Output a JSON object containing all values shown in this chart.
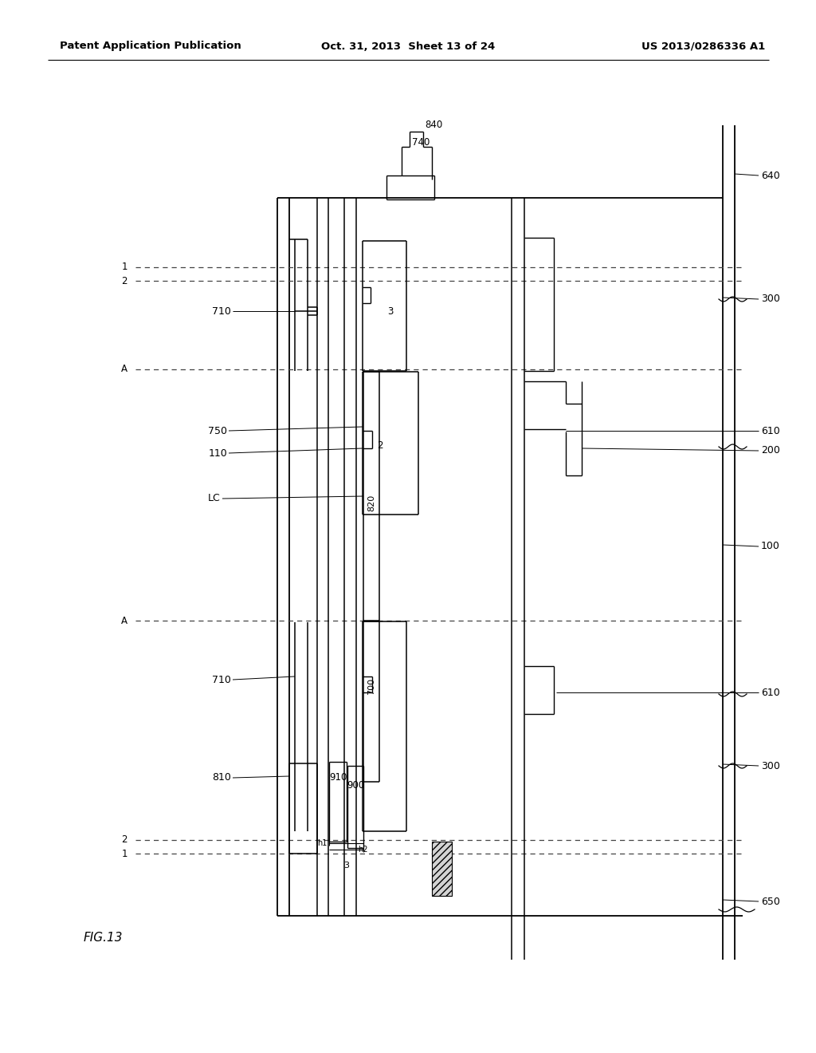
{
  "header_left": "Patent Application Publication",
  "header_center": "Oct. 31, 2013  Sheet 13 of 24",
  "header_right": "US 2013/0286336 A1",
  "fig_label": "FIG.13",
  "bg_color": "#ffffff",
  "line_color": "#000000"
}
